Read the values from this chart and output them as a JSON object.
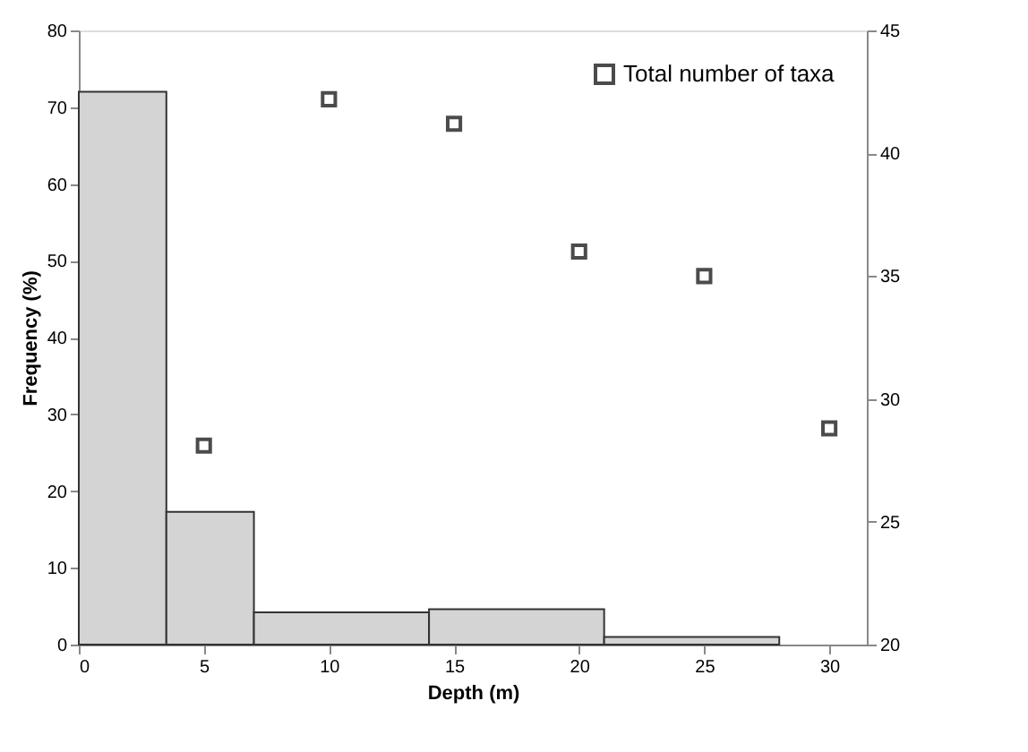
{
  "chart_data": {
    "type": "histogram",
    "xlabel": "Depth (m)",
    "ylabel": "Frequency (%)",
    "bins": [
      0,
      3.5,
      7,
      14,
      21,
      28
    ],
    "values": [
      72,
      17.3,
      4.2,
      4.6,
      1
    ],
    "color": "#d4d4d4",
    "series": [
      {
        "name": "Total number of taxa",
        "type": "scatter",
        "axis": "y2",
        "x": [
          5,
          10,
          15,
          20,
          25,
          30
        ],
        "values": [
          28.1,
          42.2,
          41.2,
          36.0,
          35.0,
          28.8
        ],
        "color": "#000000"
      }
    ],
    "xlim": [
      0,
      31.5
    ],
    "xticks": [
      0,
      5,
      10,
      15,
      20,
      25,
      30
    ],
    "ylim": [
      0,
      80
    ],
    "yticks": [
      0,
      10,
      20,
      30,
      40,
      50,
      60,
      70,
      80
    ],
    "y2lim": [
      20,
      45
    ],
    "y2ticks": [
      20,
      25,
      30,
      35,
      40,
      45
    ],
    "marker": "square",
    "grid": false,
    "legend": "top right"
  }
}
